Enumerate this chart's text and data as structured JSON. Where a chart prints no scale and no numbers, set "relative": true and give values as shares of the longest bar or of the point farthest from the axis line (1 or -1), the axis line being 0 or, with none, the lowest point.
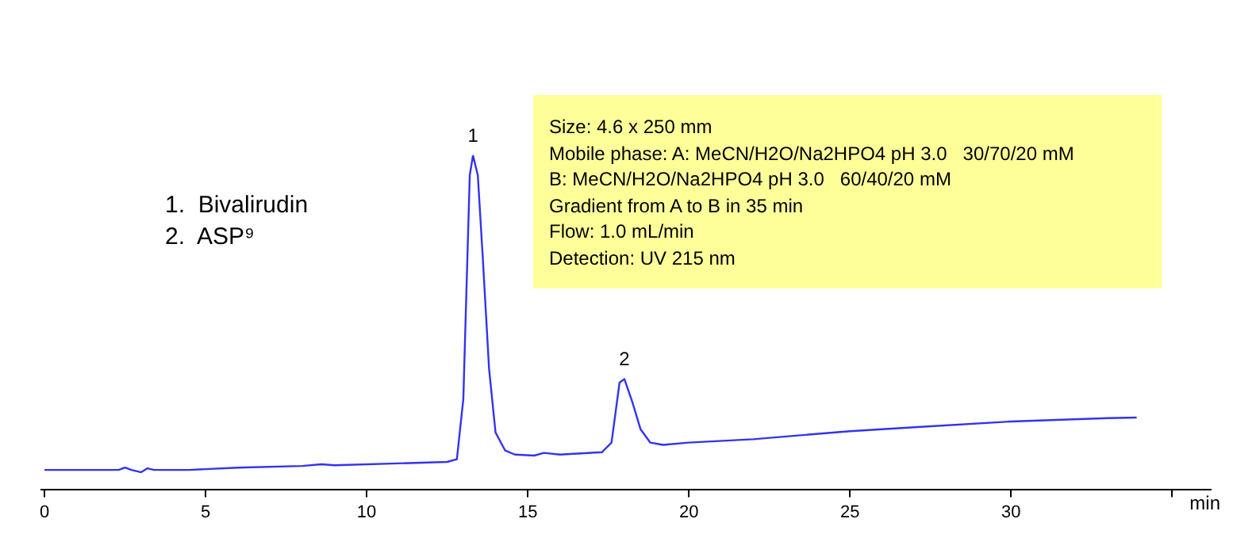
{
  "chart_data": {
    "type": "line",
    "relative": true,
    "xlabel": "min",
    "color": "#3333ee",
    "legend": false,
    "grid": false,
    "marker": "none",
    "tick_labels": "x",
    "xlim": [
      -0.1,
      36.2
    ],
    "xticks": [
      0,
      5,
      10,
      15,
      20,
      25,
      30,
      {
        "value": 35,
        "label": null
      }
    ],
    "x": [
      0,
      2.3,
      2.5,
      2.7,
      3.0,
      3.2,
      3.4,
      4.5,
      6,
      8,
      8.6,
      9,
      12.5,
      12.8,
      13.0,
      13.2,
      13.3,
      13.45,
      13.6,
      13.8,
      14.0,
      14.3,
      14.6,
      15.2,
      15.5,
      16,
      17.3,
      17.6,
      17.85,
      18.0,
      18.25,
      18.5,
      18.8,
      19.2,
      20,
      22,
      25,
      27,
      30,
      33,
      33.9
    ],
    "values": [
      0.058,
      0.058,
      0.065,
      0.058,
      0.051,
      0.063,
      0.058,
      0.058,
      0.065,
      0.07,
      0.075,
      0.072,
      0.082,
      0.09,
      0.27,
      0.94,
      1,
      0.94,
      0.7,
      0.36,
      0.17,
      0.116,
      0.104,
      0.101,
      0.109,
      0.104,
      0.111,
      0.14,
      0.32,
      0.33,
      0.26,
      0.18,
      0.14,
      0.133,
      0.14,
      0.15,
      0.174,
      0.186,
      0.203,
      0.213,
      0.215
    ],
    "annotations": [
      {
        "text": "1",
        "x": 13.3,
        "y": 1
      },
      {
        "text": "2",
        "x": 18.0,
        "y": 0.33
      },
      "1.  Bivalirudin",
      "2.  ASP⁹",
      "Size: 4.6 x 250 mm",
      "Mobile phase: A: MeCN/H2O/Na2HPO4 pH 3.0   30/70/20 mM",
      "B: MeCN/H2O/Na2HPO4 pH 3.0   60/40/20 mM",
      "Gradient from A to B in 35 min",
      "Flow: 1.0 mL/min",
      "Detection: UV 215 nm"
    ]
  }
}
